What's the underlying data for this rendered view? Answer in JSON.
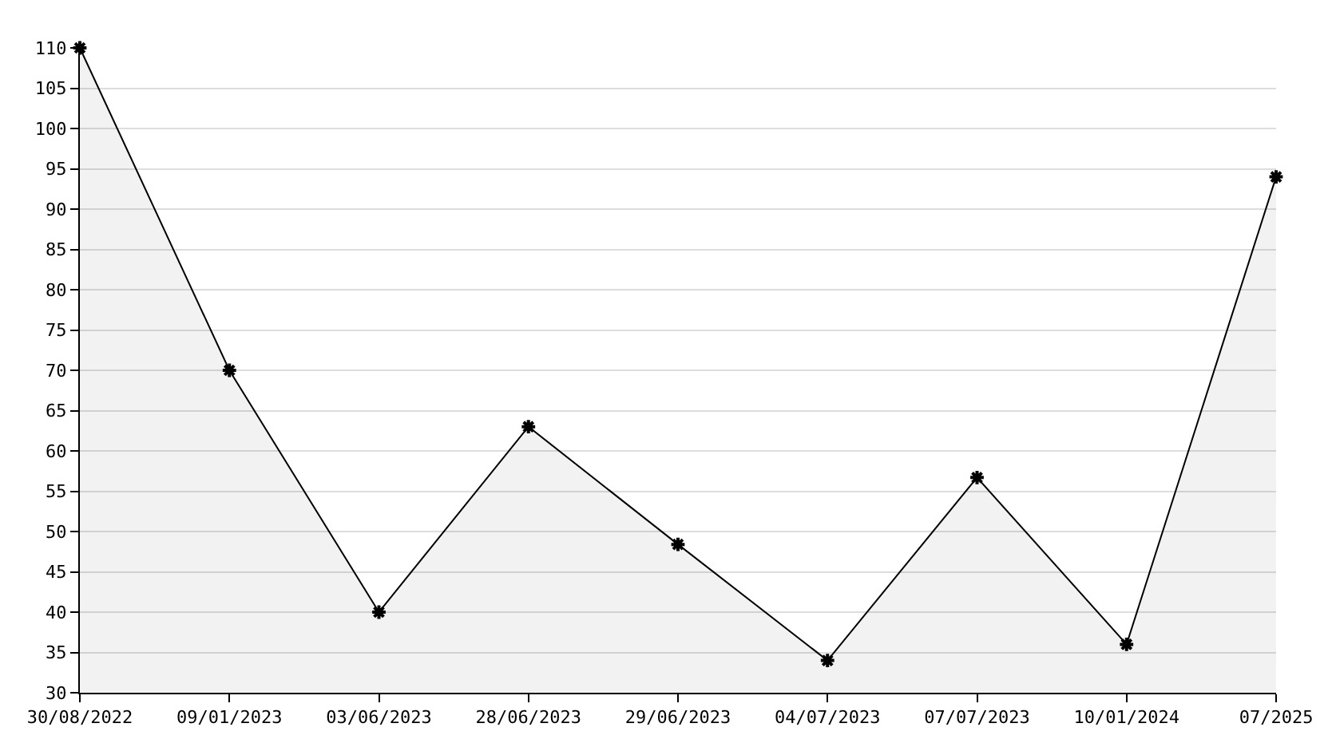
{
  "chart_data": {
    "type": "area",
    "categories": [
      "30/08/2022",
      "09/01/2023",
      "03/06/2023",
      "28/06/2023",
      "29/06/2023",
      "04/07/2023",
      "07/07/2023",
      "10/01/2024",
      "07/2025"
    ],
    "series": [
      {
        "color": "#000000",
        "values": [
          110,
          70,
          40,
          63,
          48.4,
          34,
          56.7,
          36,
          94
        ]
      }
    ],
    "ylim": [
      30,
      110
    ],
    "yticks": [
      30,
      35,
      40,
      45,
      50,
      55,
      60,
      65,
      70,
      75,
      80,
      85,
      90,
      95,
      100,
      105,
      110
    ],
    "grid": "y",
    "marker": "cross"
  }
}
